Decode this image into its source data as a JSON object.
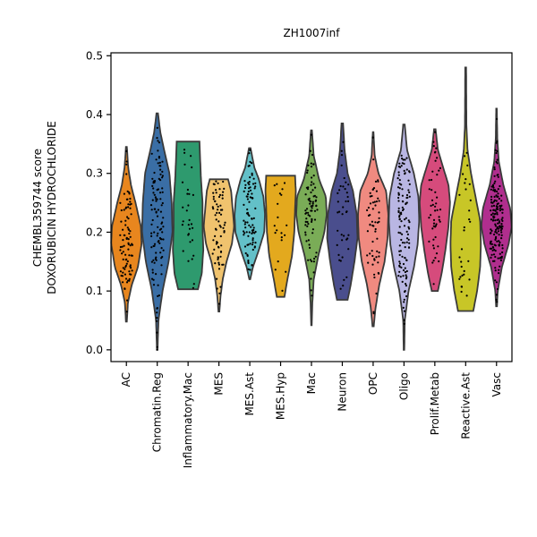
{
  "chart_data": {
    "type": "violin",
    "title": "ZH1007inf",
    "ylabel_line1": "CHEMBL359744 score",
    "ylabel_line2": "DOXORUBICIN HYDROCHLORIDE",
    "ylim": [
      -0.02,
      0.505
    ],
    "yticks": [
      0.0,
      0.1,
      0.2,
      0.3,
      0.4,
      0.5
    ],
    "ytick_labels": [
      "0.0",
      "0.1",
      "0.2",
      "0.3",
      "0.4",
      "0.5"
    ],
    "grid": false,
    "categories": [
      {
        "name": "AC",
        "color": "#e8861e",
        "min": 0.048,
        "max": 0.345,
        "median": 0.19,
        "npts": 90,
        "profile": [
          [
            0.048,
            0.03
          ],
          [
            0.08,
            0.1
          ],
          [
            0.11,
            0.35
          ],
          [
            0.14,
            0.75
          ],
          [
            0.18,
            1.0
          ],
          [
            0.21,
            0.95
          ],
          [
            0.25,
            0.6
          ],
          [
            0.28,
            0.3
          ],
          [
            0.31,
            0.12
          ],
          [
            0.345,
            0.03
          ]
        ]
      },
      {
        "name": "Chromatin.Reg",
        "color": "#3a6ea5",
        "min": 0.0,
        "max": 0.402,
        "median": 0.22,
        "npts": 110,
        "profile": [
          [
            0.0,
            0.02
          ],
          [
            0.05,
            0.08
          ],
          [
            0.1,
            0.35
          ],
          [
            0.15,
            0.75
          ],
          [
            0.2,
            1.0
          ],
          [
            0.25,
            0.95
          ],
          [
            0.3,
            0.8
          ],
          [
            0.34,
            0.45
          ],
          [
            0.37,
            0.2
          ],
          [
            0.402,
            0.05
          ]
        ]
      },
      {
        "name": "Inflammatory.Mac",
        "color": "#2e9a6e",
        "min": 0.103,
        "max": 0.354,
        "median": 0.23,
        "npts": 30,
        "profile": [
          [
            0.103,
            0.65
          ],
          [
            0.13,
            0.9
          ],
          [
            0.17,
            1.0
          ],
          [
            0.21,
            0.95
          ],
          [
            0.25,
            0.95
          ],
          [
            0.29,
            0.85
          ],
          [
            0.32,
            0.8
          ],
          [
            0.354,
            0.75
          ]
        ]
      },
      {
        "name": "MES",
        "color": "#f0c36e",
        "min": 0.065,
        "max": 0.29,
        "median": 0.21,
        "npts": 70,
        "profile": [
          [
            0.065,
            0.03
          ],
          [
            0.09,
            0.1
          ],
          [
            0.12,
            0.25
          ],
          [
            0.15,
            0.5
          ],
          [
            0.18,
            0.85
          ],
          [
            0.21,
            1.0
          ],
          [
            0.24,
            0.9
          ],
          [
            0.27,
            0.8
          ],
          [
            0.29,
            0.6
          ]
        ]
      },
      {
        "name": "MES.Ast",
        "color": "#63c0c8",
        "min": 0.12,
        "max": 0.343,
        "median": 0.23,
        "npts": 90,
        "profile": [
          [
            0.12,
            0.03
          ],
          [
            0.14,
            0.2
          ],
          [
            0.17,
            0.6
          ],
          [
            0.2,
            0.95
          ],
          [
            0.23,
            1.0
          ],
          [
            0.26,
            0.9
          ],
          [
            0.29,
            0.6
          ],
          [
            0.31,
            0.3
          ],
          [
            0.343,
            0.05
          ]
        ]
      },
      {
        "name": "MES.Hyp",
        "color": "#e3a91e",
        "min": 0.09,
        "max": 0.296,
        "median": 0.21,
        "npts": 20,
        "profile": [
          [
            0.09,
            0.25
          ],
          [
            0.12,
            0.45
          ],
          [
            0.16,
            0.75
          ],
          [
            0.2,
            0.9
          ],
          [
            0.24,
            0.95
          ],
          [
            0.27,
            1.0
          ],
          [
            0.296,
            0.95
          ]
        ]
      },
      {
        "name": "Mac",
        "color": "#7aac57",
        "min": 0.042,
        "max": 0.373,
        "median": 0.22,
        "npts": 80,
        "profile": [
          [
            0.042,
            0.02
          ],
          [
            0.08,
            0.06
          ],
          [
            0.12,
            0.15
          ],
          [
            0.16,
            0.45
          ],
          [
            0.2,
            0.85
          ],
          [
            0.23,
            1.0
          ],
          [
            0.26,
            0.95
          ],
          [
            0.29,
            0.5
          ],
          [
            0.33,
            0.15
          ],
          [
            0.373,
            0.03
          ]
        ]
      },
      {
        "name": "Neuron",
        "color": "#4a4e8d",
        "min": 0.085,
        "max": 0.385,
        "median": 0.2,
        "npts": 40,
        "profile": [
          [
            0.085,
            0.35
          ],
          [
            0.11,
            0.55
          ],
          [
            0.15,
            0.8
          ],
          [
            0.19,
            1.0
          ],
          [
            0.23,
            0.95
          ],
          [
            0.27,
            0.7
          ],
          [
            0.3,
            0.35
          ],
          [
            0.34,
            0.15
          ],
          [
            0.385,
            0.05
          ]
        ]
      },
      {
        "name": "OPC",
        "color": "#f08a80",
        "min": 0.04,
        "max": 0.37,
        "median": 0.2,
        "npts": 60,
        "profile": [
          [
            0.04,
            0.04
          ],
          [
            0.07,
            0.15
          ],
          [
            0.11,
            0.4
          ],
          [
            0.15,
            0.75
          ],
          [
            0.19,
            0.95
          ],
          [
            0.23,
            1.0
          ],
          [
            0.27,
            0.85
          ],
          [
            0.3,
            0.35
          ],
          [
            0.33,
            0.1
          ],
          [
            0.37,
            0.02
          ]
        ]
      },
      {
        "name": "Oligo",
        "color": "#b9b6e3",
        "min": 0.0,
        "max": 0.383,
        "median": 0.2,
        "npts": 120,
        "profile": [
          [
            0.0,
            0.02
          ],
          [
            0.05,
            0.05
          ],
          [
            0.1,
            0.3
          ],
          [
            0.14,
            0.65
          ],
          [
            0.18,
            0.9
          ],
          [
            0.22,
            1.0
          ],
          [
            0.26,
            0.95
          ],
          [
            0.3,
            0.65
          ],
          [
            0.34,
            0.2
          ],
          [
            0.383,
            0.05
          ]
        ]
      },
      {
        "name": "Prolif.Metab",
        "color": "#d64b7c",
        "min": 0.1,
        "max": 0.375,
        "median": 0.23,
        "npts": 50,
        "profile": [
          [
            0.1,
            0.2
          ],
          [
            0.13,
            0.45
          ],
          [
            0.17,
            0.7
          ],
          [
            0.21,
            0.9
          ],
          [
            0.25,
            1.0
          ],
          [
            0.28,
            0.9
          ],
          [
            0.31,
            0.55
          ],
          [
            0.34,
            0.2
          ],
          [
            0.375,
            0.05
          ]
        ]
      },
      {
        "name": "Reactive.Ast",
        "color": "#c8c627",
        "min": 0.066,
        "max": 0.48,
        "median": 0.2,
        "npts": 30,
        "profile": [
          [
            0.066,
            0.5
          ],
          [
            0.1,
            0.75
          ],
          [
            0.14,
            0.95
          ],
          [
            0.18,
            1.0
          ],
          [
            0.22,
            0.95
          ],
          [
            0.26,
            0.65
          ],
          [
            0.3,
            0.35
          ],
          [
            0.34,
            0.12
          ],
          [
            0.38,
            0.05
          ],
          [
            0.42,
            0.04
          ],
          [
            0.48,
            0.03
          ]
        ]
      },
      {
        "name": "Vasc",
        "color": "#b02e8e",
        "min": 0.074,
        "max": 0.41,
        "median": 0.21,
        "npts": 170,
        "profile": [
          [
            0.074,
            0.03
          ],
          [
            0.1,
            0.08
          ],
          [
            0.14,
            0.35
          ],
          [
            0.18,
            0.8
          ],
          [
            0.21,
            1.0
          ],
          [
            0.24,
            0.9
          ],
          [
            0.28,
            0.45
          ],
          [
            0.32,
            0.15
          ],
          [
            0.36,
            0.05
          ],
          [
            0.41,
            0.02
          ]
        ]
      }
    ]
  }
}
